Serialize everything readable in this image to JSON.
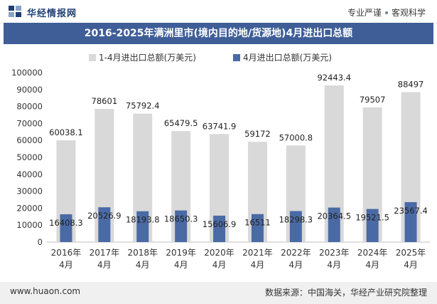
{
  "header": {
    "brand": "华经情报网",
    "tagline_left": "专业严谨",
    "tagline_right": "客观科学"
  },
  "title": "2016-2025年满洲里市(境内目的地/货源地)4月进出口总额",
  "footer": {
    "url": "www.huaon.com",
    "source": "数据来源：中国海关，华经产业研究院整理"
  },
  "colors": {
    "title_bar": "#3f5e98",
    "series_1": "#d9d9d9",
    "series_2": "#4a6aa5"
  },
  "chart_data": {
    "type": "bar",
    "categories": [
      [
        "2016年",
        "4月"
      ],
      [
        "2017年",
        "4月"
      ],
      [
        "2018年",
        "4月"
      ],
      [
        "2019年",
        "4月"
      ],
      [
        "2020年",
        "4月"
      ],
      [
        "2021年",
        "4月"
      ],
      [
        "2022年",
        "4月"
      ],
      [
        "2023年",
        "4月"
      ],
      [
        "2024年",
        "4月"
      ],
      [
        "2025年",
        "4月"
      ]
    ],
    "series": [
      {
        "name": "1-4月进出口总额(万美元)",
        "values": [
          60038.1,
          78601,
          75792.4,
          65479.5,
          63741.9,
          59172,
          57000.8,
          92443.4,
          79507,
          88497
        ],
        "labels": [
          "60038.1",
          "78601",
          "75792.4",
          "65479.5",
          "63741.9",
          "59172",
          "57000.8",
          "92443.4",
          "79507",
          "88497"
        ],
        "color": "#d9d9d9"
      },
      {
        "name": "4月进出口总额(万美元)",
        "values": [
          16408.3,
          20526.9,
          18193.8,
          18650.3,
          15606.9,
          16511,
          18298.3,
          20364.5,
          19521.5,
          23567.4
        ],
        "labels": [
          "16408.3",
          "20526.9",
          "18193.8",
          "18650.3",
          "15606.9",
          "16511",
          "18298.3",
          "20364.5",
          "19521.5",
          "23567.4"
        ],
        "color": "#4a6aa5"
      }
    ],
    "ylim": [
      0,
      100000
    ],
    "yticks": [
      0,
      10000,
      20000,
      30000,
      40000,
      50000,
      60000,
      70000,
      80000,
      90000,
      100000
    ],
    "ytick_labels": [
      "0",
      "10000",
      "20000",
      "30000",
      "40000",
      "50000",
      "60000",
      "70000",
      "80000",
      "90000",
      "100000"
    ],
    "legend_position": "top",
    "grid": false
  }
}
